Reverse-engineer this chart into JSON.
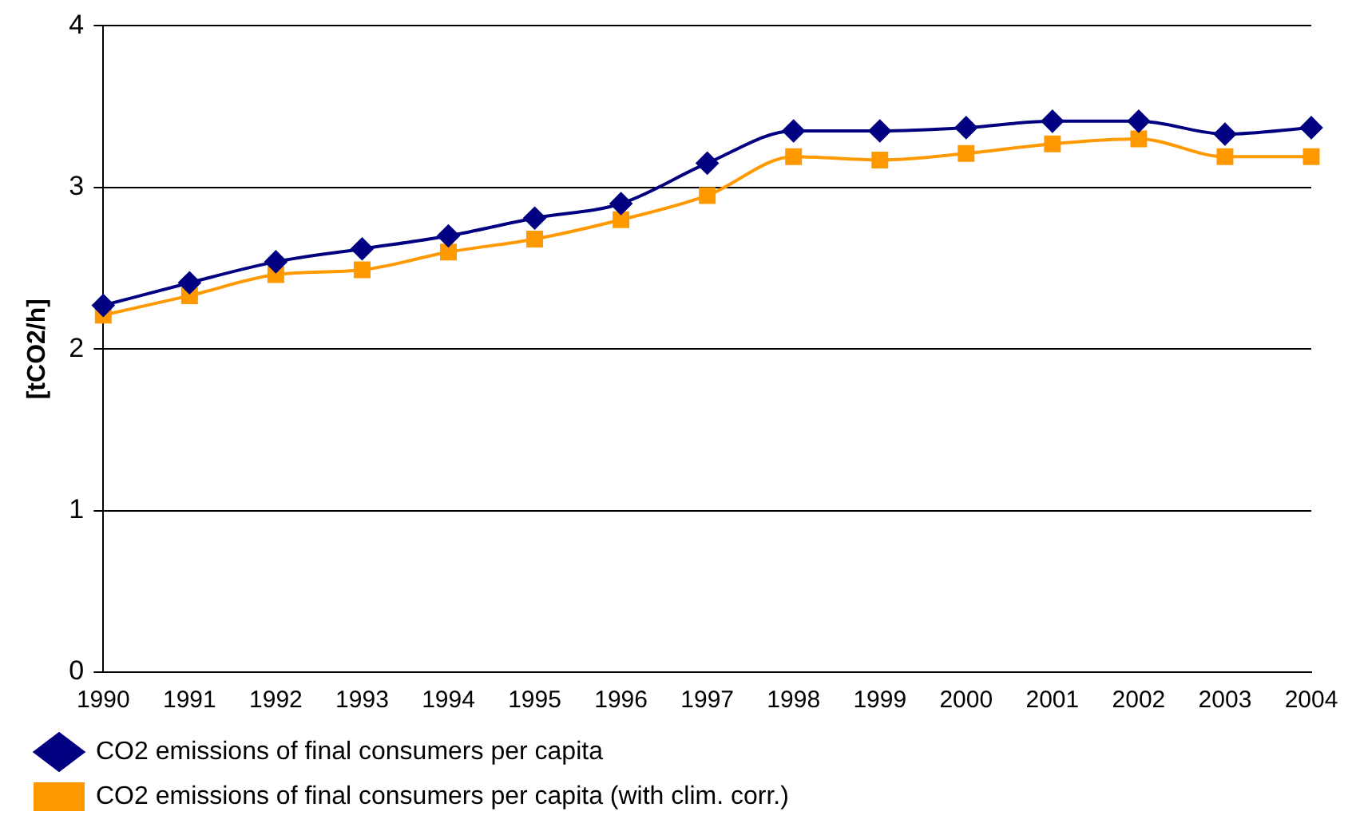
{
  "chart_data": {
    "type": "line",
    "ylabel": "[tCO2/h]",
    "categories": [
      "1990",
      "1991",
      "1992",
      "1993",
      "1994",
      "1995",
      "1996",
      "1997",
      "1998",
      "1999",
      "2000",
      "2001",
      "2002",
      "2003",
      "2004"
    ],
    "series": [
      {
        "name": "CO2 emissions of final consumers per capita",
        "color": "#000080",
        "marker": "diamond",
        "values": [
          2.27,
          2.41,
          2.54,
          2.62,
          2.7,
          2.81,
          2.9,
          3.15,
          3.35,
          3.35,
          3.37,
          3.41,
          3.41,
          3.33,
          3.37
        ]
      },
      {
        "name": "CO2 emissions of final consumers per capita (with clim. corr.)",
        "color": "#ff9900",
        "marker": "square",
        "values": [
          2.21,
          2.33,
          2.46,
          2.49,
          2.6,
          2.68,
          2.8,
          2.95,
          3.19,
          3.17,
          3.21,
          3.27,
          3.3,
          3.19,
          3.19
        ]
      }
    ],
    "ylim": [
      0,
      4
    ],
    "yticks": [
      0,
      1,
      2,
      3,
      4
    ],
    "grid": "y",
    "legend": "bottom left",
    "line_style": "solid"
  }
}
